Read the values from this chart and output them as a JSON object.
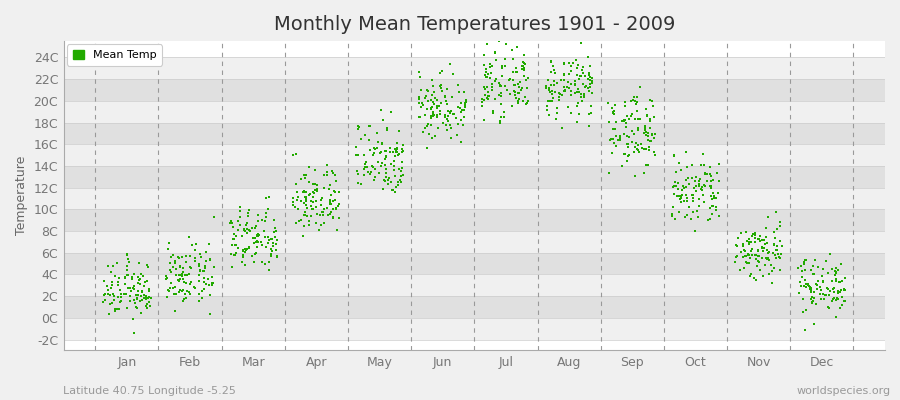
{
  "title": "Monthly Mean Temperatures 1901 - 2009",
  "ylabel": "Temperature",
  "subtitle_left": "Latitude 40.75 Longitude -5.25",
  "subtitle_right": "worldspecies.org",
  "dot_color": "#22aa00",
  "bg_color": "#f0f0f0",
  "plot_bg_color": "#ffffff",
  "stripe_color_a": "#f0f0f0",
  "stripe_color_b": "#e0e0e0",
  "grid_color": "#cccccc",
  "dash_color": "#999999",
  "months": [
    "Jan",
    "Feb",
    "Mar",
    "Apr",
    "May",
    "Jun",
    "Jul",
    "Aug",
    "Sep",
    "Oct",
    "Nov",
    "Dec"
  ],
  "ytick_labels": [
    "-2C",
    "0C",
    "2C",
    "4C",
    "6C",
    "8C",
    "10C",
    "12C",
    "14C",
    "16C",
    "18C",
    "20C",
    "22C",
    "24C"
  ],
  "ytick_values": [
    -2,
    0,
    2,
    4,
    6,
    8,
    10,
    12,
    14,
    16,
    18,
    20,
    22,
    24
  ],
  "ylim": [
    -3,
    25.5
  ],
  "xlim": [
    0,
    13
  ],
  "n_years": 109,
  "monthly_means": [
    2.5,
    3.8,
    7.2,
    10.8,
    14.8,
    19.5,
    21.5,
    21.2,
    17.2,
    11.5,
    6.2,
    3.0
  ],
  "monthly_stds": [
    1.3,
    1.4,
    1.5,
    1.6,
    1.8,
    1.6,
    1.4,
    1.4,
    1.7,
    1.7,
    1.4,
    1.3
  ],
  "dot_size": 3,
  "legend_label": "Mean Temp",
  "title_fontsize": 14,
  "axis_fontsize": 9,
  "tick_fontsize": 9,
  "subtitle_fontsize": 8
}
